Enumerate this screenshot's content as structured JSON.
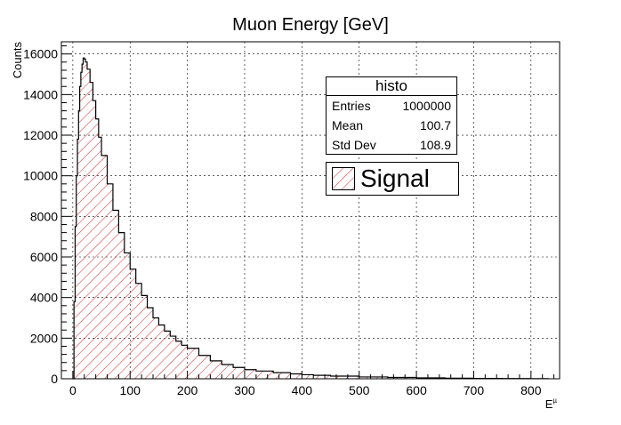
{
  "chart_data": {
    "type": "histogram",
    "title": "Muon Energy [GeV]",
    "xlabel": "E^{µ}",
    "xlabel_main": "E",
    "xlabel_sup": "µ",
    "ylabel": "Counts",
    "xlim": [
      -20,
      850
    ],
    "ylim": [
      0,
      16600
    ],
    "xticks": [
      0,
      100,
      200,
      300,
      400,
      500,
      600,
      700,
      800
    ],
    "yticks": [
      0,
      2000,
      4000,
      6000,
      8000,
      10000,
      12000,
      14000,
      16000
    ],
    "grid": true,
    "fill_pattern": "hatched",
    "colors": {
      "line": "#000000",
      "hatch": "#cc2a2a"
    },
    "series": [
      {
        "name": "Signal",
        "x": [
          0,
          2,
          4,
          6,
          8,
          10,
          12,
          14,
          16,
          18,
          20,
          22,
          25,
          30,
          35,
          40,
          45,
          50,
          60,
          70,
          80,
          90,
          100,
          110,
          120,
          130,
          140,
          150,
          160,
          170,
          180,
          190,
          200,
          220,
          240,
          260,
          280,
          300,
          320,
          350,
          380,
          400,
          420,
          450,
          500,
          550,
          600,
          650,
          700,
          750,
          800,
          830
        ],
        "values": [
          0,
          3800,
          7500,
          10000,
          11800,
          13200,
          14400,
          15100,
          15500,
          15800,
          15750,
          15600,
          15250,
          14600,
          13700,
          12800,
          11900,
          11000,
          9600,
          8300,
          7200,
          6200,
          5400,
          4700,
          4100,
          3500,
          3000,
          2650,
          2350,
          2100,
          1850,
          1650,
          1500,
          1150,
          880,
          700,
          560,
          450,
          380,
          300,
          240,
          200,
          170,
          130,
          90,
          65,
          45,
          30,
          20,
          12,
          6,
          3
        ]
      }
    ]
  },
  "stats": {
    "title": "histo",
    "rows": [
      {
        "label": "Entries",
        "value": "1000000"
      },
      {
        "label": "Mean",
        "value": "100.7"
      },
      {
        "label": "Std Dev",
        "value": "108.9"
      }
    ]
  },
  "legend": {
    "label": "Signal"
  }
}
